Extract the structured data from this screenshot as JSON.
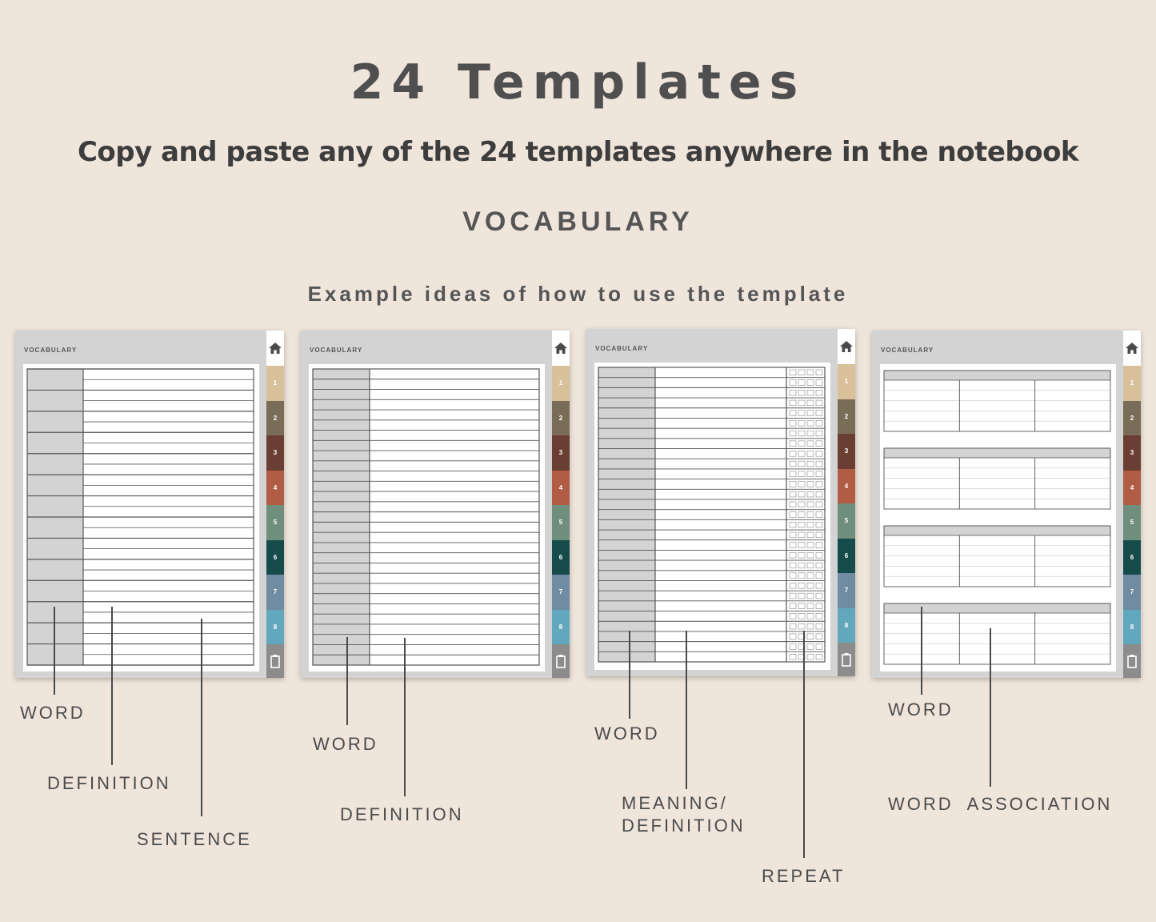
{
  "header": {
    "title": "24 Templates",
    "subtitle": "Copy and paste any of the 24 templates anywhere in the notebook",
    "section": "VOCABULARY",
    "example": "Example ideas of how to use the template"
  },
  "page_label": "VOCABULARY",
  "tabs": [
    {
      "label": "1",
      "color": "#d7c09a"
    },
    {
      "label": "2",
      "color": "#7a6d58"
    },
    {
      "label": "3",
      "color": "#6b3e34"
    },
    {
      "label": "4",
      "color": "#b15d45"
    },
    {
      "label": "5",
      "color": "#6f8e7c"
    },
    {
      "label": "6",
      "color": "#164b4c"
    },
    {
      "label": "7",
      "color": "#6f8ca3"
    },
    {
      "label": "8",
      "color": "#62a7bb"
    }
  ],
  "icons": {
    "home": "home-icon",
    "clipboard": "clipboard-icon"
  },
  "templates": [
    {
      "labels": [
        "WORD",
        "DEFINITION",
        "SENTENCE"
      ]
    },
    {
      "labels": [
        "WORD",
        "DEFINITION"
      ]
    },
    {
      "labels": [
        "WORD",
        "MEANING/",
        "DEFINITION",
        "REPEAT"
      ]
    },
    {
      "labels": [
        "WORD",
        "WORD  ASSOCIATION"
      ]
    }
  ]
}
